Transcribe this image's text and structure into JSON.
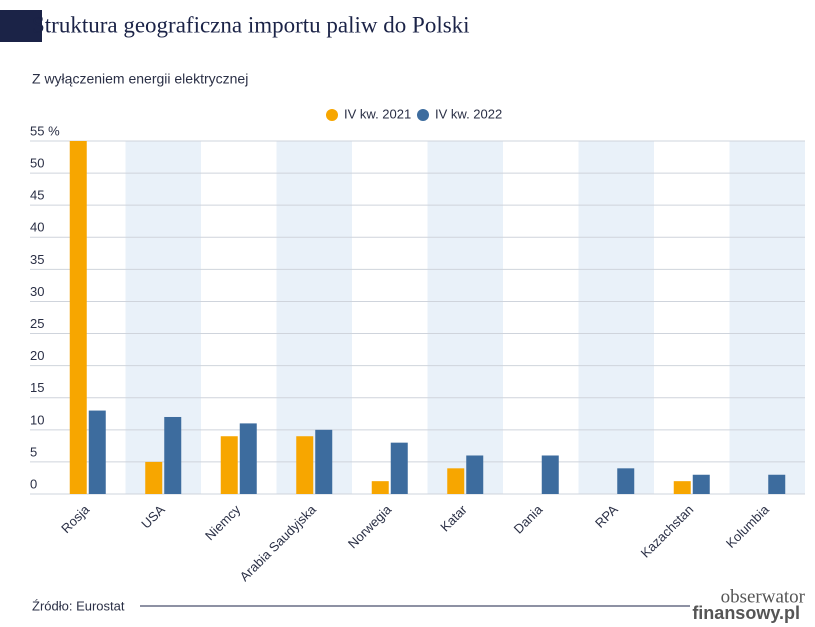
{
  "chart_data": {
    "type": "bar",
    "title": "Struktura geograficzna importu paliw do Polski",
    "subtitle": "Z wyłączeniem energii elektrycznej",
    "categories": [
      "Rosja",
      "USA",
      "Niemcy",
      "Arabia Saudyjska",
      "Norwegia",
      "Katar",
      "Dania",
      "RPA",
      "Kazachstan",
      "Kolumbia"
    ],
    "series": [
      {
        "name": "IV kw. 2021",
        "color": "#f7a600",
        "values": [
          55,
          5,
          9,
          9,
          2,
          4,
          0,
          0,
          2,
          0
        ]
      },
      {
        "name": "IV kw. 2022",
        "color": "#3d6c9e",
        "values": [
          13,
          12,
          11,
          10,
          8,
          6,
          6,
          4,
          3,
          3
        ]
      }
    ],
    "ylim": [
      0,
      55
    ],
    "yticks": [
      0,
      5,
      10,
      15,
      20,
      25,
      30,
      35,
      40,
      45,
      50,
      {
        "value": 55,
        "label": "55 %"
      }
    ],
    "grid": true,
    "legend": "top"
  },
  "footer": {
    "source": "Źródło: Eurostat",
    "logo": [
      "obserwator",
      "finansowy.pl"
    ]
  }
}
